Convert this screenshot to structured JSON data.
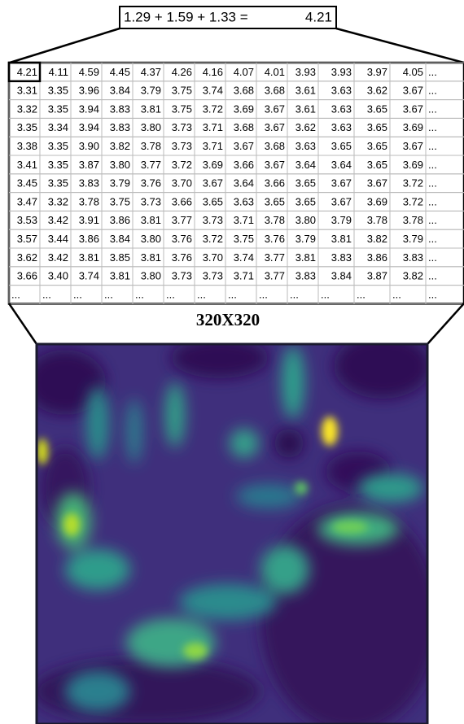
{
  "equation": {
    "expression": "1.29 + 1.59 + 1.33 =",
    "result": "4.21"
  },
  "table": {
    "rows": [
      [
        "4.21",
        "4.11",
        "4.59",
        "4.45",
        "4.37",
        "4.26",
        "4.16",
        "4.07",
        "4.01",
        "3.93",
        "3.93",
        "3.97",
        "4.05",
        "..."
      ],
      [
        "3.31",
        "3.35",
        "3.96",
        "3.84",
        "3.79",
        "3.75",
        "3.74",
        "3.68",
        "3.68",
        "3.61",
        "3.63",
        "3.62",
        "3.67",
        "..."
      ],
      [
        "3.32",
        "3.35",
        "3.94",
        "3.83",
        "3.81",
        "3.75",
        "3.72",
        "3.69",
        "3.67",
        "3.61",
        "3.63",
        "3.65",
        "3.67",
        "..."
      ],
      [
        "3.35",
        "3.34",
        "3.94",
        "3.83",
        "3.80",
        "3.73",
        "3.71",
        "3.68",
        "3.67",
        "3.62",
        "3.63",
        "3.65",
        "3.69",
        "..."
      ],
      [
        "3.38",
        "3.35",
        "3.90",
        "3.82",
        "3.78",
        "3.73",
        "3.71",
        "3.67",
        "3.68",
        "3.63",
        "3.65",
        "3.65",
        "3.67",
        "..."
      ],
      [
        "3.41",
        "3.35",
        "3.87",
        "3.80",
        "3.77",
        "3.72",
        "3.69",
        "3.66",
        "3.67",
        "3.64",
        "3.64",
        "3.65",
        "3.69",
        "..."
      ],
      [
        "3.45",
        "3.35",
        "3.83",
        "3.79",
        "3.76",
        "3.70",
        "3.67",
        "3.64",
        "3.66",
        "3.65",
        "3.67",
        "3.67",
        "3.72",
        "..."
      ],
      [
        "3.47",
        "3.32",
        "3.78",
        "3.75",
        "3.73",
        "3.66",
        "3.65",
        "3.63",
        "3.65",
        "3.65",
        "3.67",
        "3.69",
        "3.72",
        "..."
      ],
      [
        "3.53",
        "3.42",
        "3.91",
        "3.86",
        "3.81",
        "3.77",
        "3.73",
        "3.71",
        "3.78",
        "3.80",
        "3.79",
        "3.78",
        "3.78",
        "..."
      ],
      [
        "3.57",
        "3.44",
        "3.86",
        "3.84",
        "3.80",
        "3.76",
        "3.72",
        "3.75",
        "3.76",
        "3.79",
        "3.81",
        "3.82",
        "3.79",
        "..."
      ],
      [
        "3.62",
        "3.42",
        "3.81",
        "3.85",
        "3.81",
        "3.76",
        "3.70",
        "3.74",
        "3.77",
        "3.81",
        "3.83",
        "3.86",
        "3.83",
        "..."
      ],
      [
        "3.66",
        "3.40",
        "3.74",
        "3.81",
        "3.80",
        "3.73",
        "3.73",
        "3.71",
        "3.77",
        "3.83",
        "3.84",
        "3.87",
        "3.82",
        "..."
      ],
      [
        "...",
        "...",
        "...",
        "...",
        "...",
        "...",
        "...",
        "...",
        "...",
        "...",
        "...",
        "...",
        "...",
        "..."
      ]
    ]
  },
  "size_label": "320X320"
}
